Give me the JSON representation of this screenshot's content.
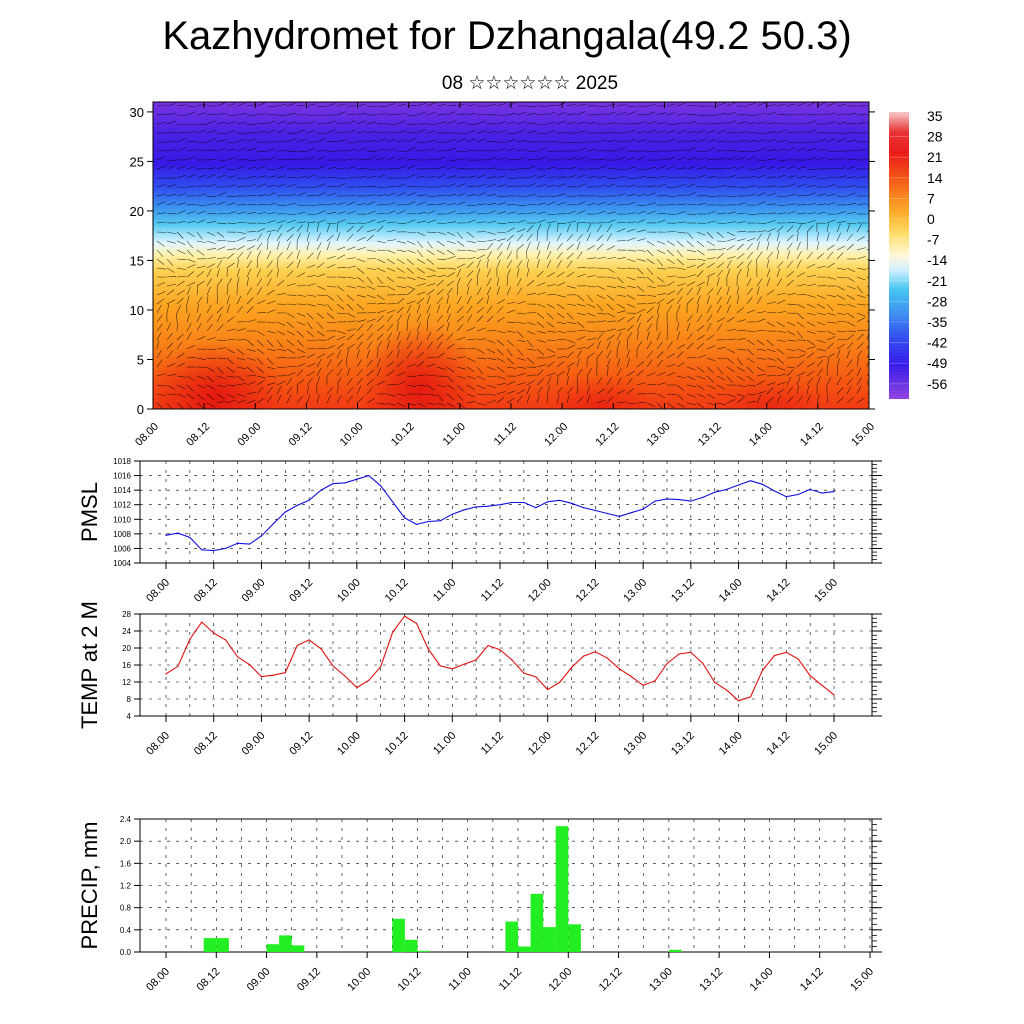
{
  "title": "Kazhydromet for Dzhangala(49.2 50.3)",
  "subtitle": "08 ☆☆☆☆☆☆ 2025",
  "x_tick_labels": [
    "08.00",
    "08.12",
    "09.00",
    "09.12",
    "10.00",
    "10.12",
    "11.00",
    "11.12",
    "12.00",
    "12.12",
    "13.00",
    "13.12",
    "14.00",
    "14.12",
    "15.00"
  ],
  "chart_data": [
    {
      "type": "heatmap",
      "description_of_axes": "time vs height",
      "xlabel": "",
      "ylabel": "",
      "x_categories": [
        "08.00",
        "08.12",
        "09.00",
        "09.12",
        "10.00",
        "10.12",
        "11.00",
        "11.12",
        "12.00",
        "12.12",
        "13.00",
        "13.12",
        "14.00",
        "14.12",
        "15.00"
      ],
      "y_ticks": [
        0,
        5,
        10,
        15,
        20,
        25,
        30
      ],
      "ylim": [
        0,
        31
      ],
      "colorbar_labels": [
        "35",
        "28",
        "21",
        "14",
        "7",
        "0",
        "-7",
        "-14",
        "-21",
        "-28",
        "-35",
        "-42",
        "-49",
        "-56"
      ],
      "colorbar_colors": [
        "#f4b8b8",
        "#e63030",
        "#ee2a10",
        "#f65a10",
        "#fb8a18",
        "#fdb530",
        "#ffe070",
        "#fff6c8",
        "#c8f0ff",
        "#40c4f0",
        "#3c90f0",
        "#3050f0",
        "#3a18e8",
        "#8a3ae0"
      ],
      "note_wind_barbs": true
    },
    {
      "type": "line",
      "ylabel": "PMSL",
      "ylim": [
        1004,
        1018
      ],
      "y_ticks": [
        1004,
        1006,
        1008,
        1010,
        1012,
        1014,
        1016,
        1018
      ],
      "color": "#1010e0",
      "x": [
        0,
        3,
        6,
        9,
        12,
        15,
        18,
        21,
        24,
        27,
        30,
        33,
        36,
        39,
        42,
        45,
        48,
        51,
        54,
        57,
        60,
        63,
        66,
        69,
        72,
        75,
        78,
        81,
        84,
        87,
        90,
        93,
        96,
        99,
        102,
        105,
        108,
        111,
        114,
        117,
        120,
        123,
        126,
        129,
        132,
        135,
        138,
        141,
        144,
        147,
        150,
        153,
        156,
        159,
        162,
        165,
        168
      ],
      "values": [
        1007.8,
        1008.1,
        1007.5,
        1005.8,
        1005.7,
        1006.0,
        1006.7,
        1006.6,
        1007.7,
        1009.4,
        1011.0,
        1011.9,
        1012.6,
        1014.0,
        1014.9,
        1015.0,
        1015.5,
        1016.0,
        1014.6,
        1012.4,
        1010.2,
        1009.3,
        1009.7,
        1009.8,
        1010.7,
        1011.3,
        1011.7,
        1011.8,
        1012.0,
        1012.3,
        1012.3,
        1011.6,
        1012.4,
        1012.6,
        1012.2,
        1011.6,
        1011.2,
        1010.8,
        1010.4,
        1010.9,
        1011.4,
        1012.5,
        1012.8,
        1012.7,
        1012.5,
        1013.0,
        1013.7,
        1014.1,
        1014.7,
        1015.3,
        1014.8,
        1013.9,
        1013.1,
        1013.4,
        1014.1,
        1013.6,
        1013.8
      ]
    },
    {
      "type": "line",
      "ylabel": "TEMP at 2 M",
      "ylim": [
        4,
        28
      ],
      "y_ticks": [
        4,
        8,
        12,
        16,
        20,
        24,
        28
      ],
      "color": "#e01010",
      "x": [
        0,
        3,
        6,
        9,
        12,
        15,
        18,
        21,
        24,
        27,
        30,
        33,
        36,
        39,
        42,
        45,
        48,
        51,
        54,
        57,
        60,
        63,
        66,
        69,
        72,
        75,
        78,
        81,
        84,
        87,
        90,
        93,
        96,
        99,
        102,
        105,
        108,
        111,
        114,
        117,
        120,
        123,
        126,
        129,
        132,
        135,
        138,
        141,
        144,
        147,
        150,
        153,
        156,
        159,
        162,
        165,
        168
      ],
      "values": [
        13.9,
        15.7,
        22.1,
        26.1,
        23.5,
        21.9,
        17.9,
        16.1,
        13.3,
        13.6,
        14.2,
        20.6,
        21.9,
        19.8,
        15.8,
        13.4,
        10.7,
        12.4,
        15.6,
        23.7,
        27.5,
        25.8,
        19.7,
        15.8,
        15.1,
        16.2,
        17.2,
        20.6,
        19.6,
        17.2,
        14.1,
        13.2,
        10.2,
        11.9,
        15.4,
        18.1,
        19.1,
        17.6,
        15.1,
        13.3,
        11.2,
        12.3,
        16.3,
        18.6,
        19.0,
        16.4,
        11.9,
        10.1,
        7.6,
        8.5,
        14.7,
        18.2,
        19.0,
        17.4,
        13.5,
        11.2,
        9.0
      ]
    },
    {
      "type": "bar",
      "ylabel": "PRECIP, mm",
      "ylim": [
        0,
        2.4
      ],
      "y_ticks": [
        "0.0",
        "0.4",
        "0.8",
        "1.2",
        "1.6",
        "2.0",
        "2.4"
      ],
      "color": "#22ee22",
      "x_start": [
        9,
        12,
        24,
        27,
        30,
        54,
        57,
        60,
        81,
        84,
        87,
        90,
        93,
        96,
        120
      ],
      "values": [
        0.25,
        0.25,
        0.14,
        0.3,
        0.12,
        0.6,
        0.22,
        0.02,
        0.55,
        0.1,
        1.05,
        0.45,
        2.27,
        0.5,
        0.04
      ]
    }
  ]
}
